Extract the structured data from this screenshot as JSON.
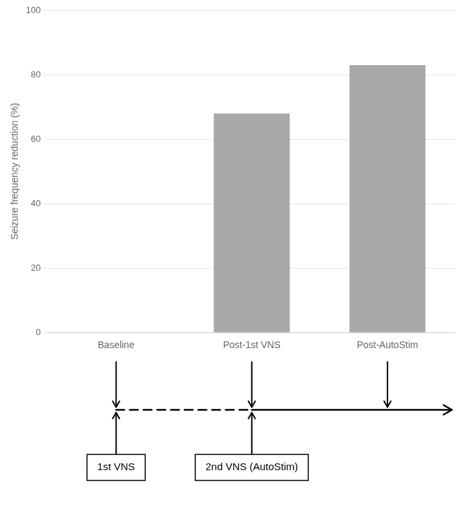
{
  "chart_data": {
    "type": "bar",
    "categories": [
      "Baseline",
      "Post-1st VNS",
      "Post-AutoStim"
    ],
    "values": [
      null,
      68,
      83
    ],
    "color": "#a9a9a9",
    "ylabel": "Seizure frequency reduction (%)",
    "ylim": [
      0,
      100
    ],
    "yticks": [
      0,
      20,
      40,
      60,
      80,
      100
    ],
    "grid": true,
    "annotations": [
      "1st VNS",
      "2nd VNS (AutoStim)"
    ]
  }
}
